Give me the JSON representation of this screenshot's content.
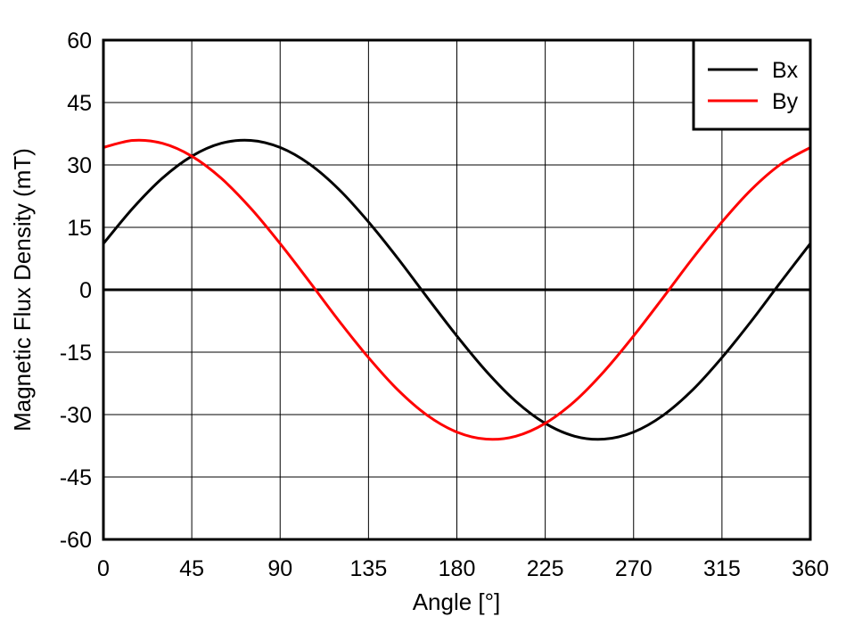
{
  "chart_data": {
    "type": "line",
    "xlabel": "Angle [°]",
    "ylabel": "Magnetic Flux Density (mT)",
    "xlim": [
      0,
      360
    ],
    "ylim": [
      -60,
      60
    ],
    "xticks": [
      0,
      45,
      90,
      135,
      180,
      225,
      270,
      315,
      360
    ],
    "yticks": [
      60,
      45,
      30,
      15,
      0,
      -15,
      -30,
      -45,
      -60
    ],
    "grid": true,
    "legend": "top-right",
    "x": [
      0,
      15,
      30,
      45,
      60,
      75,
      90,
      105,
      120,
      135,
      150,
      165,
      180,
      195,
      210,
      225,
      240,
      255,
      270,
      285,
      300,
      315,
      330,
      345,
      360
    ],
    "series": [
      {
        "name": "Bx",
        "color": "#000000",
        "values": [
          11.1,
          19.6,
          26.8,
          32.1,
          35.2,
          35.9,
          34.2,
          30.2,
          24.1,
          16.3,
          7.5,
          -1.9,
          -11.1,
          -19.6,
          -26.8,
          -32.1,
          -35.2,
          -35.9,
          -34.2,
          -30.2,
          -24.1,
          -16.3,
          -7.5,
          1.9,
          11.1
        ]
      },
      {
        "name": "By",
        "color": "#ff0000",
        "values": [
          34.2,
          35.9,
          35.2,
          32.1,
          26.8,
          19.6,
          11.1,
          1.9,
          -7.5,
          -16.3,
          -24.1,
          -30.2,
          -34.2,
          -35.9,
          -35.2,
          -32.1,
          -26.8,
          -19.6,
          -11.1,
          -1.9,
          7.5,
          16.3,
          24.1,
          30.2,
          34.2
        ]
      }
    ]
  }
}
